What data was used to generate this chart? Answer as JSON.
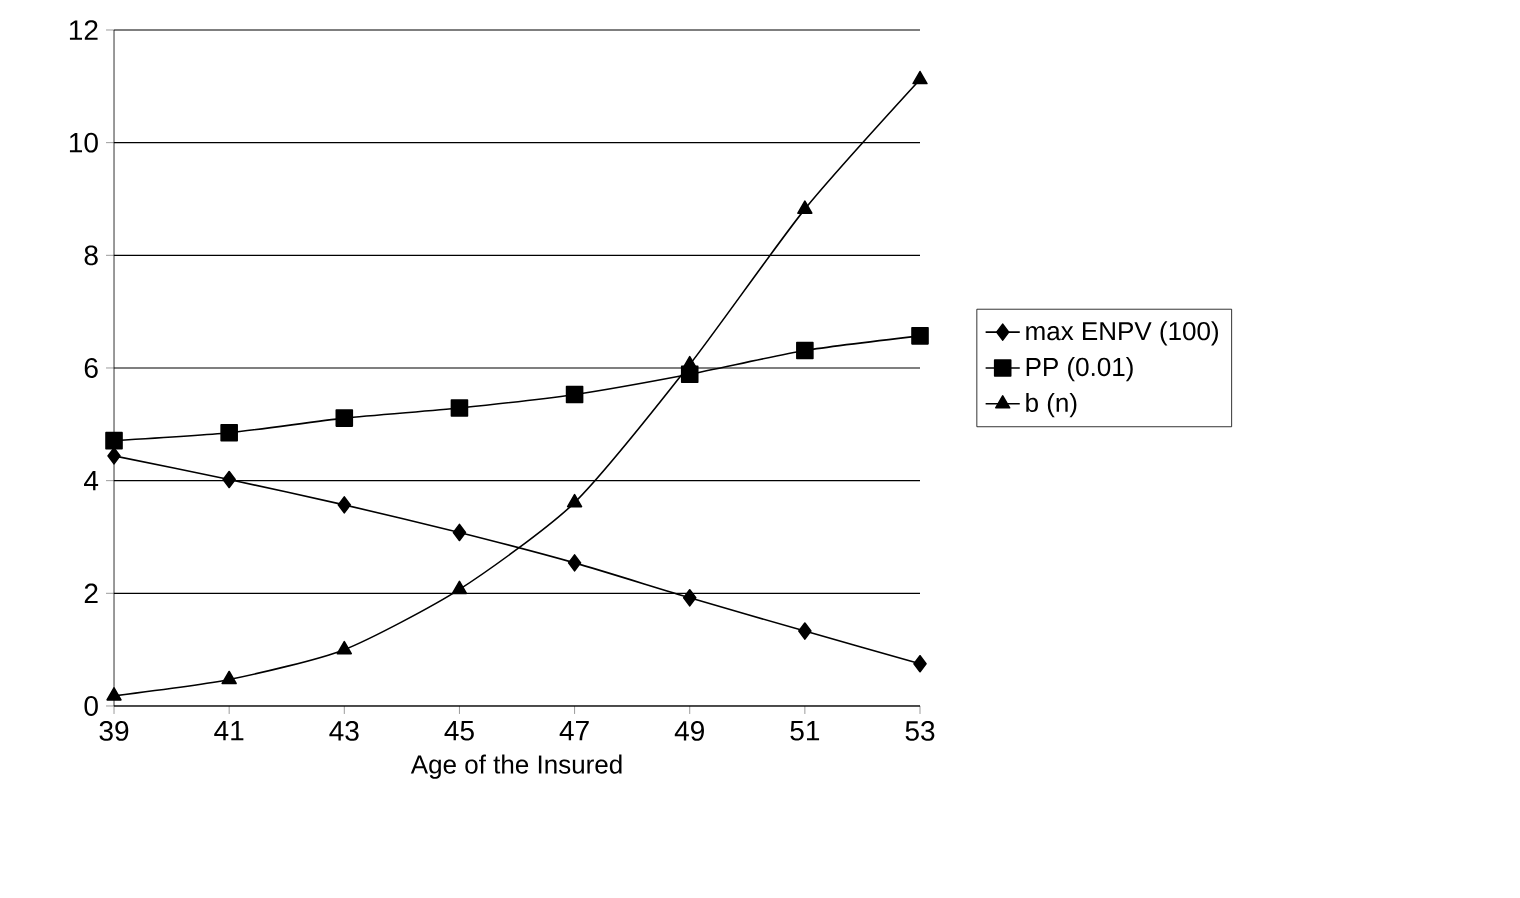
{
  "chart_data": {
    "type": "line",
    "xlabel": "Age of the Insured",
    "categories": [
      "39",
      "41",
      "43",
      "45",
      "47",
      "49",
      "51",
      "53"
    ],
    "series": [
      {
        "name": "max ENPV (100)",
        "color": "#000000",
        "marker": "diamond",
        "values": [
          4.44,
          4.02,
          3.57,
          3.08,
          2.54,
          1.92,
          1.33,
          0.75
        ]
      },
      {
        "name": "PP (0.01)",
        "color": "#000000",
        "marker": "square",
        "values": [
          4.71,
          4.85,
          5.11,
          5.29,
          5.53,
          5.89,
          6.31,
          6.57
        ]
      },
      {
        "name": "b (n)",
        "color": "#000000",
        "marker": "triangle",
        "values": [
          0.18,
          0.47,
          1.0,
          2.07,
          3.61,
          6.06,
          8.82,
          11.12
        ]
      }
    ],
    "ylim": [
      0,
      12
    ],
    "yticks": [
      0,
      2,
      4,
      6,
      8,
      10,
      12
    ],
    "grid": "y",
    "legend": "right",
    "line_style": "solid"
  }
}
